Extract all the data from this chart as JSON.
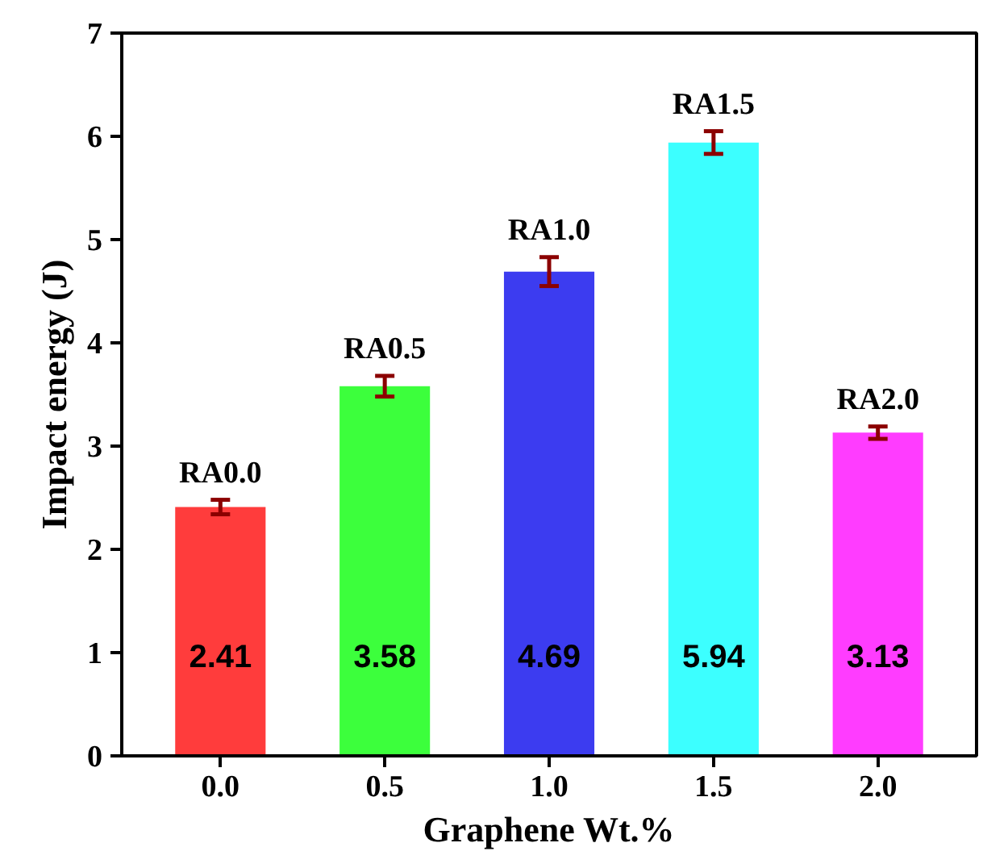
{
  "chart_data": {
    "type": "bar",
    "xlabel": "Graphene Wt.%",
    "ylabel": "Impact energy (J)",
    "categories": [
      "0.0",
      "0.5",
      "1.0",
      "1.5",
      "2.0"
    ],
    "values": [
      2.41,
      3.58,
      4.69,
      5.94,
      3.13
    ],
    "colors": [
      "#ff3c3c",
      "#3cff3c",
      "#3c3cf0",
      "#3cffff",
      "#ff3cff"
    ],
    "errors": [
      0.07,
      0.1,
      0.14,
      0.11,
      0.06
    ],
    "data_labels": true,
    "annotations": [
      {
        "text": "RA0.0",
        "x": "0.0",
        "y": 2.48
      },
      {
        "text": "RA0.5",
        "x": "0.5",
        "y": 3.68
      },
      {
        "text": "RA1.0",
        "x": "1.0",
        "y": 4.83
      },
      {
        "text": "RA1.5",
        "x": "1.5",
        "y": 6.05
      },
      {
        "text": "RA2.0",
        "x": "2.0",
        "y": 3.19
      }
    ],
    "ylim": [
      0,
      7
    ],
    "yticks": [
      0,
      1,
      2,
      3,
      4,
      5,
      6,
      7
    ],
    "grid": false
  }
}
